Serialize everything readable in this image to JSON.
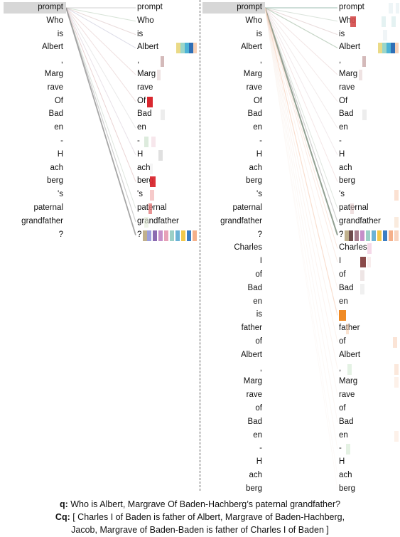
{
  "panel_a": {
    "left_tokens": [
      "prompt",
      "Who",
      "is",
      "Albert",
      ",",
      "Marg",
      "rave",
      "Of",
      "Bad",
      "en",
      "-",
      "H",
      "ach",
      "berg",
      "'s",
      "paternal",
      "grandfather",
      "?"
    ],
    "right_tokens": [
      "prompt",
      "Who",
      "is",
      "Albert",
      ",",
      "Marg",
      "rave",
      "Of",
      "Bad",
      "en",
      "-",
      "H",
      "ach",
      "berg",
      "'s",
      "paternal",
      "grandfather",
      "?"
    ],
    "highlighted_row": 0
  },
  "panel_b": {
    "left_tokens": [
      "prompt",
      "Who",
      "is",
      "Albert",
      ",",
      "Marg",
      "rave",
      "Of",
      "Bad",
      "en",
      "-",
      "H",
      "ach",
      "berg",
      "'s",
      "paternal",
      "grandfather",
      "?",
      "Charles",
      "I",
      "of",
      "Bad",
      "en",
      "is",
      "father",
      "of",
      "Albert",
      ",",
      "Marg",
      "rave",
      "of",
      "Bad",
      "en",
      "-",
      "H",
      "ach",
      "berg"
    ],
    "right_tokens": [
      "prompt",
      "Who",
      "is",
      "Albert",
      ",",
      "Marg",
      "rave",
      "Of",
      "Bad",
      "en",
      "-",
      "H",
      "ach",
      "berg",
      "'s",
      "paternal",
      "grandfather",
      "?",
      "Charles",
      "I",
      "of",
      "Bad",
      "en",
      "is",
      "father",
      "of",
      "Albert",
      ",",
      "Marg",
      "rave",
      "of",
      "Bad",
      "en",
      "-",
      "H",
      "ach",
      "berg"
    ],
    "highlighted_row": 0
  },
  "caption": {
    "q_label": "q:",
    "q_text": " Who is Albert, Margrave Of Baden-Hachberg’s paternal grandfather?",
    "cq_label": "Cq:",
    "cq_line1": " [ Charles I of Baden is father of Albert, Margrave of Baden-Hachberg,",
    "cq_line2": "Jacob, Margrave of Baden-Baden is father of Charles I of Baden ]"
  }
}
